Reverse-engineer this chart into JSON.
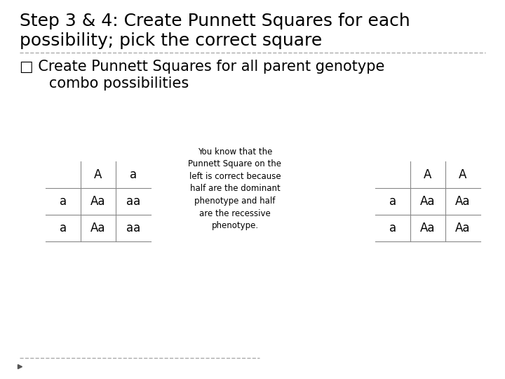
{
  "title_line1": "Step 3 & 4: Create Punnett Squares for each",
  "title_line2": "possibility; pick the correct square",
  "subtitle_line1": "□ Create Punnett Squares for all parent genotype",
  "subtitle_line2": "   combo possibilities",
  "annotation": "You know that the\nPunnett Square on the\nleft is correct because\nhalf are the dominant\nphenotype and half\nare the recessive\nphenotype.",
  "background_color": "#ffffff",
  "title_fontsize": 18,
  "subtitle_fontsize": 15,
  "table1": {
    "header_row": [
      "",
      "A",
      "a"
    ],
    "rows": [
      [
        "a",
        "Aa",
        "aa"
      ],
      [
        "a",
        "Aa",
        "aa"
      ]
    ]
  },
  "table2": {
    "header_row": [
      "",
      "A",
      "A"
    ],
    "rows": [
      [
        "a",
        "Aa",
        "Aa"
      ],
      [
        "a",
        "Aa",
        "Aa"
      ]
    ]
  },
  "line_color": "#888888",
  "text_color": "#000000",
  "annotation_fontsize": 8.5,
  "table_fontsize": 12,
  "fig_width": 7.2,
  "fig_height": 5.4,
  "dpi": 100
}
